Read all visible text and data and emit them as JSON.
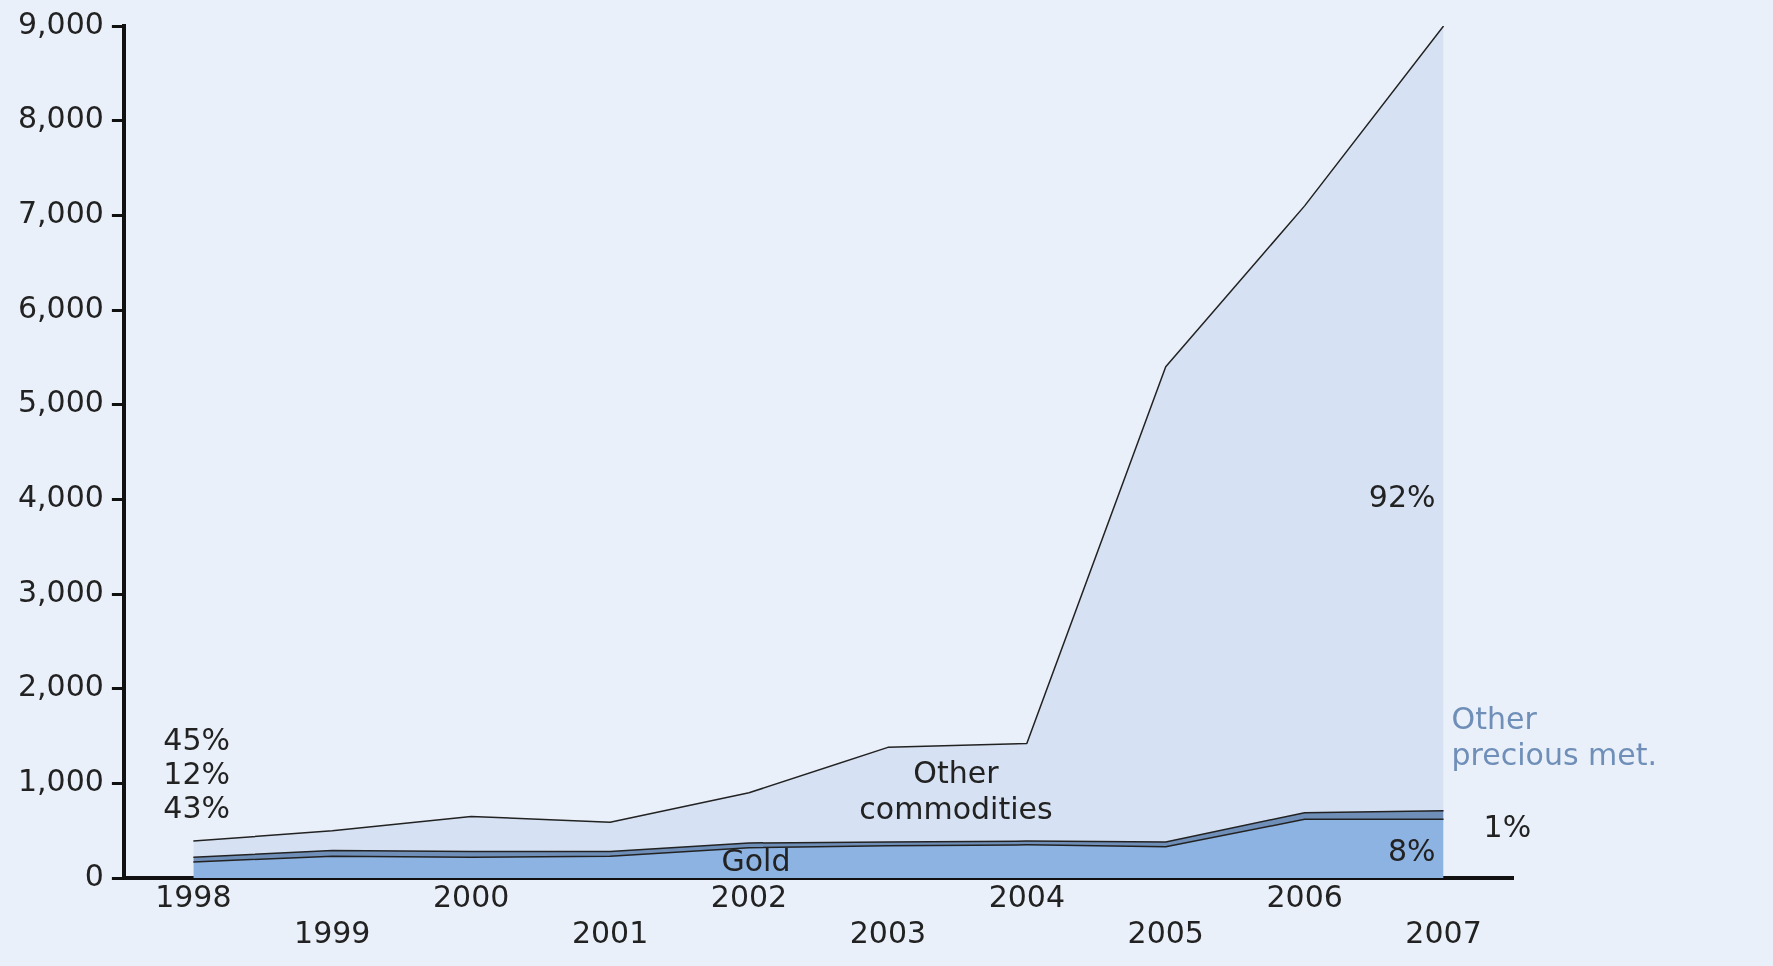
{
  "chart_data": {
    "type": "area",
    "stacked": true,
    "categories": [
      "1998",
      "1999",
      "2000",
      "2001",
      "2002",
      "2003",
      "2004",
      "2005",
      "2006",
      "2007"
    ],
    "series": [
      {
        "name": "Gold",
        "color": "#8db3e2",
        "values": [
          170,
          230,
          220,
          230,
          320,
          340,
          350,
          330,
          620,
          620
        ]
      },
      {
        "name": "Other precious met.",
        "color": "#6f8fb8",
        "values": [
          50,
          60,
          60,
          50,
          50,
          40,
          40,
          50,
          70,
          90
        ]
      },
      {
        "name": "Other commodities",
        "color": "#d6e2f3",
        "values": [
          170,
          210,
          370,
          310,
          530,
          1000,
          1030,
          5020,
          6410,
          8290
        ]
      }
    ],
    "ylim": [
      0,
      9000
    ],
    "yticks": [
      {
        "value": 0,
        "label": "0"
      },
      {
        "value": 1000,
        "label": "1,000"
      },
      {
        "value": 2000,
        "label": "2,000"
      },
      {
        "value": 3000,
        "label": "3,000"
      },
      {
        "value": 4000,
        "label": "4,000"
      },
      {
        "value": 5000,
        "label": "5,000"
      },
      {
        "value": 6000,
        "label": "6,000"
      },
      {
        "value": 7000,
        "label": "7,000"
      },
      {
        "value": 8000,
        "label": "8,000"
      },
      {
        "value": 9000,
        "label": "9,000"
      }
    ],
    "annotations": [
      "45%",
      "12%",
      "43%",
      {
        "text": "92%",
        "x": "2007",
        "y": 4000
      },
      {
        "text": "8%",
        "x": "2007",
        "y": 260
      },
      {
        "text": "1%",
        "x": "2007",
        "y": 660
      }
    ],
    "grid": false,
    "legend": false
  }
}
